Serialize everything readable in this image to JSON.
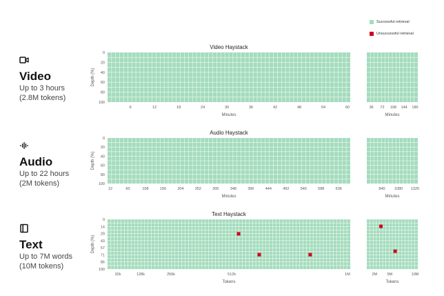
{
  "legend": {
    "success_label": "Successful retrieval",
    "fail_label": "Unsuccessful retrieval",
    "success_color": "#a4dcbd",
    "fail_color": "#d0021b"
  },
  "modalities": [
    {
      "name": "Video",
      "line1": "Up to 3 hours",
      "line2": "(2.8M tokens)",
      "icon": "video-camera-icon"
    },
    {
      "name": "Audio",
      "line1": "Up to 22 hours",
      "line2": "(2M tokens)",
      "icon": "audio-waveform-icon"
    },
    {
      "name": "Text",
      "line1": "Up to 7M words",
      "line2": "(10M tokens)",
      "icon": "book-icon"
    }
  ],
  "chart_data": [
    {
      "type": "heatmap",
      "title": "Video Haystack",
      "xlabel": "Minutes",
      "ylabel": "Depth (%)",
      "yticks": [
        "0",
        "20",
        "40",
        "60",
        "80",
        "100"
      ],
      "main": {
        "xlim": [
          1,
          60
        ],
        "xticks": [
          "6",
          "12",
          "18",
          "24",
          "30",
          "36",
          "42",
          "48",
          "54",
          "60"
        ],
        "tick_values": [
          6,
          12,
          18,
          24,
          30,
          36,
          42,
          48,
          54,
          60
        ]
      },
      "extension": {
        "xlim": [
          30,
          180
        ],
        "xticks": [
          "36",
          "72",
          "108",
          "144",
          "180"
        ],
        "tick_values": [
          36,
          72,
          108,
          144,
          180
        ]
      },
      "failures": [],
      "ext_failures": []
    },
    {
      "type": "heatmap",
      "title": "Audio Haystack",
      "xlabel": "Minutes",
      "ylabel": "Depth (%)",
      "yticks": [
        "0",
        "20",
        "40",
        "60",
        "80",
        "100"
      ],
      "main": {
        "xlim": [
          12,
          660
        ],
        "xticks": [
          "12",
          "60",
          "108",
          "156",
          "204",
          "252",
          "300",
          "348",
          "396",
          "444",
          "492",
          "540",
          "588",
          "636"
        ],
        "tick_values": [
          12,
          60,
          108,
          156,
          204,
          252,
          300,
          348,
          396,
          444,
          492,
          540,
          588,
          636
        ]
      },
      "extension": {
        "xlim": [
          660,
          1320
        ],
        "xticks": [
          "840",
          "1080",
          "1320"
        ],
        "tick_values": [
          840,
          1080,
          1320
        ]
      },
      "failures": [],
      "ext_failures": []
    },
    {
      "type": "heatmap",
      "title": "Text Haystack",
      "xlabel": "Tokens",
      "ylabel": "Depth (%)",
      "yticks": [
        "0",
        "14",
        "29",
        "43",
        "57",
        "71",
        "86",
        "100"
      ],
      "main": {
        "xlim": [
          0,
          1000
        ],
        "xticks": [
          "32k",
          "128k",
          "256k",
          "512k",
          "1M"
        ],
        "tick_values": [
          32,
          128,
          256,
          512,
          1000
        ]
      },
      "extension": {
        "xlim": [
          1000,
          10000
        ],
        "xticks": [
          "2M",
          "5M",
          "10M"
        ],
        "tick_values": [
          2000,
          5000,
          10000
        ]
      },
      "failures": [
        {
          "x": 540,
          "y": 29
        },
        {
          "x": 625,
          "y": 71
        },
        {
          "x": 835,
          "y": 71
        }
      ],
      "ext_failures": [
        {
          "x": 3500,
          "y": 14
        },
        {
          "x": 6000,
          "y": 64
        }
      ]
    }
  ]
}
